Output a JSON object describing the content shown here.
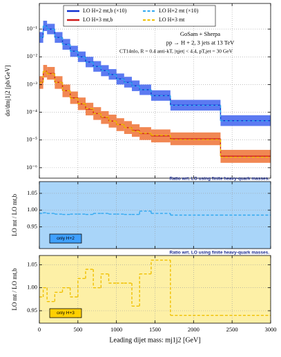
{
  "chart_data": [
    {
      "type": "histogram",
      "ylabel": "dσ/dmj1j2 [pb/GeV]",
      "annotations": [
        "GoSam + Sherpa",
        "pp → H + 2, 3 jets at 13 TeV",
        "CT14nlo, R = 0.4 anti-kT, |ηjet| < 4.4, pT,jet = 30 GeV"
      ],
      "bins": [
        0,
        50,
        100,
        200,
        300,
        400,
        500,
        600,
        700,
        800,
        900,
        1000,
        1100,
        1200,
        1300,
        1450,
        1700,
        2350,
        3000
      ],
      "xlim": [
        0,
        3000
      ],
      "ylim": [
        4.2e-07,
        0.84
      ],
      "log_y": true,
      "grid": true,
      "legend": "upper center",
      "yticks": [
        {
          "value": 1e-06,
          "label": "10⁻⁶"
        },
        {
          "value": 1e-05,
          "label": "10⁻⁵"
        },
        {
          "value": 0.0001,
          "label": "10⁻⁴"
        },
        {
          "value": 0.001,
          "label": "10⁻³"
        },
        {
          "value": 0.01,
          "label": "10⁻²"
        },
        {
          "value": 0.1,
          "label": "10⁻¹"
        }
      ],
      "series": [
        {
          "name": "LO H+2 mt,b (×10)",
          "color": "#1030d0",
          "band_color": "#4a6cf0",
          "style": "solid",
          "values": [
            0.05,
            0.13,
            0.1,
            0.05,
            0.028,
            0.016,
            0.01,
            0.0065,
            0.0045,
            0.0032,
            0.0023,
            0.0016,
            0.0012,
            0.0009,
            0.00065,
            0.0004,
            0.00018,
            5e-05
          ],
          "lower": [
            0.032,
            0.085,
            0.065,
            0.032,
            0.018,
            0.01,
            0.0065,
            0.0042,
            0.0029,
            0.002,
            0.0015,
            0.001,
            0.00078,
            0.00058,
            0.00042,
            0.00026,
            0.000115,
            3.2e-05
          ],
          "upper": [
            0.078,
            0.2,
            0.155,
            0.078,
            0.044,
            0.025,
            0.0155,
            0.01,
            0.007,
            0.005,
            0.0036,
            0.0025,
            0.0019,
            0.0014,
            0.001,
            0.00062,
            0.00028,
            7.8e-05
          ]
        },
        {
          "name": "LO H+2 mt (×10)",
          "color": "#30a8f0",
          "style": "dashed",
          "values": [
            0.0495,
            0.129,
            0.099,
            0.0494,
            0.0276,
            0.0158,
            0.0099,
            0.0064,
            0.00445,
            0.00317,
            0.00227,
            0.00158,
            0.00118,
            0.00089,
            0.00065,
            0.000396,
            0.000177,
            4.9e-05
          ]
        },
        {
          "name": "LO H+3 mt,b",
          "color": "#d01818",
          "band_color": "#f07a40",
          "style": "solid",
          "values": [
            0.0012,
            0.003,
            0.0025,
            0.0012,
            0.0006,
            0.00033,
            0.0002,
            0.00013,
            9e-05,
            6.5e-05,
            4.8e-05,
            3.6e-05,
            2.8e-05,
            2.2e-05,
            1.7e-05,
            1.4e-05,
            1.1e-05,
            2.6e-06
          ],
          "lower": [
            0.0007,
            0.0018,
            0.0015,
            0.0007,
            0.00035,
            0.0002,
            0.00012,
            7.7e-05,
            5.3e-05,
            3.8e-05,
            2.8e-05,
            2.1e-05,
            1.65e-05,
            1.3e-05,
            1e-05,
            8.2e-06,
            6.5e-06,
            1.5e-06
          ],
          "upper": [
            0.002,
            0.0051,
            0.0043,
            0.002,
            0.001,
            0.00056,
            0.00034,
            0.00022,
            0.000153,
            0.00011,
            8.2e-05,
            6.1e-05,
            4.8e-05,
            3.7e-05,
            2.9e-05,
            2.4e-05,
            1.87e-05,
            4.4e-06
          ]
        },
        {
          "name": "LO H+3 mt",
          "color": "#f0c000",
          "style": "dashed",
          "values": [
            0.00118,
            0.003,
            0.00243,
            0.00119,
            0.0006,
            0.00032,
            0.000204,
            0.000135,
            9e-05,
            6.7e-05,
            4.8e-05,
            3.6e-05,
            2.8e-05,
            2.1e-05,
            1.75e-05,
            1.48e-05,
            1.03e-05,
            2.4e-06
          ]
        }
      ]
    },
    {
      "type": "histogram",
      "subtitle": "Ratio wrt. LO using finite heavy-quark masses.",
      "ylabel": "LO mt / LO mt,b",
      "box_label": "only H+2",
      "background": "#a9d5f9",
      "box_color": "#3fa0ff",
      "bins": [
        0,
        50,
        100,
        200,
        300,
        400,
        500,
        600,
        700,
        800,
        900,
        1000,
        1100,
        1200,
        1300,
        1450,
        1700,
        2350,
        3000
      ],
      "xlim": [
        0,
        3000
      ],
      "ylim": [
        0.885,
        1.085
      ],
      "grid": true,
      "yticks": [
        0.95,
        {
          "value": 1,
          "label": "1.00"
        },
        1.05
      ],
      "series": [
        {
          "color": "#30a8f0",
          "style": "dashed",
          "values": [
            0.99,
            0.992,
            0.99,
            0.988,
            0.987,
            0.988,
            0.988,
            0.987,
            0.99,
            0.99,
            0.988,
            0.988,
            0.987,
            0.987,
            0.997,
            0.99,
            0.985,
            0.985
          ]
        }
      ]
    },
    {
      "type": "histogram",
      "subtitle": "Ratio wrt. LO using finite heavy-quark masses.",
      "ylabel": "LO mt / LO mt,b",
      "box_label": "only H+3",
      "background": "#fdf0a6",
      "box_color": "#ffd000",
      "xlabel": "Leading dijet mass: mj1j2 [GeV]",
      "bins": [
        0,
        50,
        100,
        200,
        300,
        400,
        500,
        600,
        700,
        800,
        900,
        1000,
        1100,
        1200,
        1300,
        1450,
        1700,
        2350,
        3000
      ],
      "xlim": [
        0,
        3000
      ],
      "ylim": [
        0.923,
        1.07
      ],
      "grid": true,
      "xticks": [
        0,
        500,
        1000,
        1500,
        2000,
        2500,
        3000
      ],
      "yticks": [
        0.95,
        {
          "value": 1,
          "label": "1.00"
        },
        1.05
      ],
      "series": [
        {
          "color": "#f0c000",
          "style": "dashed",
          "values": [
            0.98,
            1.0,
            0.97,
            0.99,
            1.0,
            0.98,
            1.02,
            1.04,
            1.0,
            1.03,
            1.01,
            1.01,
            1.01,
            0.96,
            1.03,
            1.06,
            0.94,
            0.94
          ]
        }
      ]
    }
  ]
}
